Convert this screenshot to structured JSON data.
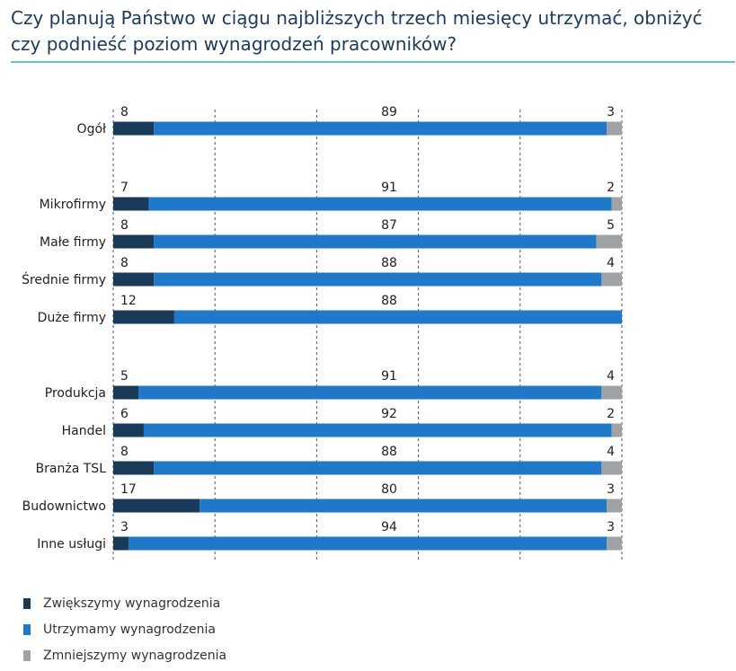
{
  "chart_data": {
    "type": "bar",
    "stacked": true,
    "orientation": "horizontal",
    "title": "Czy planują Państwo w ciągu najbliższych trzech miesięcy utrzymać, obniżyć czy podnieść poziom wynagrodzeń pracowników?",
    "xlim": [
      0,
      100
    ],
    "categories": [
      "Ogół",
      "Mikrofirmy",
      "Małe firmy",
      "Średnie firmy",
      "Duże firmy",
      "Produkcja",
      "Handel",
      "Branża TSL",
      "Budownictwo",
      "Inne usługi"
    ],
    "series": [
      {
        "name": "Zwiększymy wynagrodzenia",
        "color": "#1a3a5a",
        "values": [
          8,
          7,
          8,
          8,
          12,
          5,
          6,
          8,
          17,
          3
        ]
      },
      {
        "name": "Utrzymamy wynagrodzenia",
        "color": "#1f78c8",
        "values": [
          89,
          91,
          87,
          88,
          88,
          91,
          92,
          88,
          80,
          94
        ]
      },
      {
        "name": "Zmniejszymy wynagrodzenia",
        "color": "#a0a3a6",
        "values": [
          3,
          2,
          5,
          4,
          0,
          4,
          2,
          4,
          3,
          3
        ]
      }
    ],
    "legend_position": "bottom-left",
    "grid": true
  }
}
